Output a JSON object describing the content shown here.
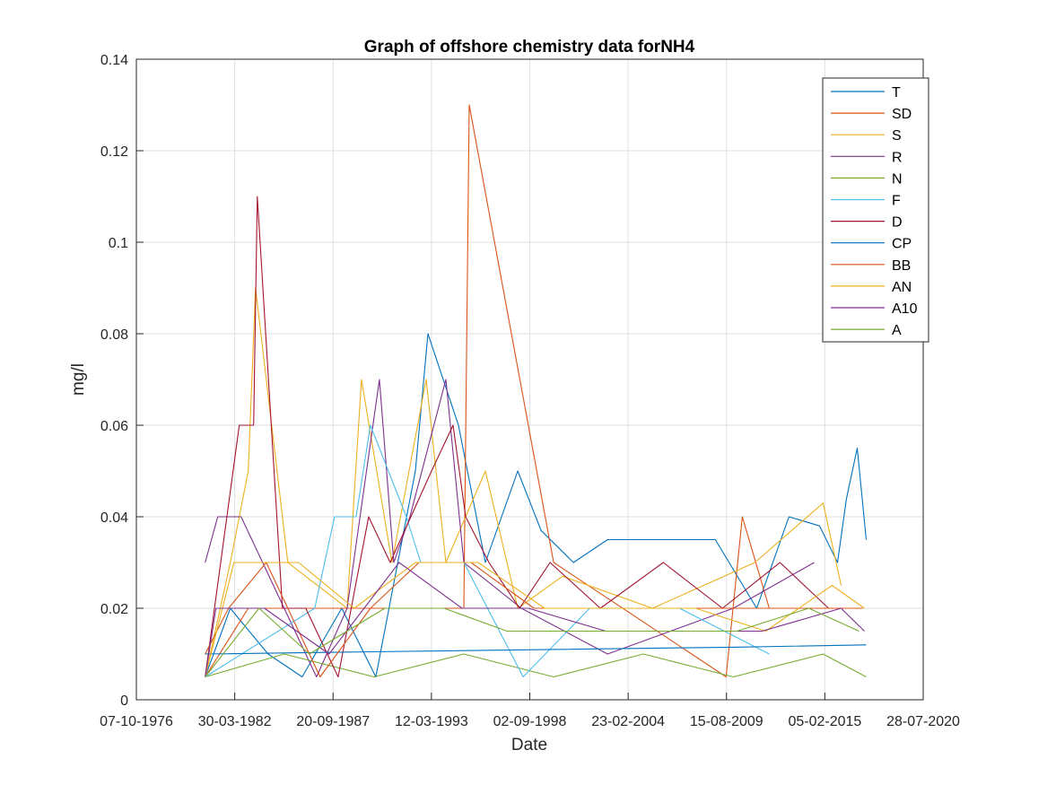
{
  "chart_data": {
    "type": "line",
    "title": "Graph of offshore chemistry data forNH4",
    "xlabel": "Date",
    "ylabel": "mg/l",
    "ylim": [
      0,
      0.14
    ],
    "xlim": [
      "07-10-1976",
      "28-07-2020"
    ],
    "x_tick_labels": [
      "07-10-1976",
      "30-03-1982",
      "20-09-1987",
      "12-03-1993",
      "02-09-1998",
      "23-02-2004",
      "15-08-2009",
      "05-02-2015",
      "28-07-2020"
    ],
    "y_tick_labels": [
      "0",
      "0.02",
      "0.04",
      "0.06",
      "0.08",
      "0.1",
      "0.12",
      "0.14"
    ],
    "y_ticks": [
      0,
      0.02,
      0.04,
      0.06,
      0.08,
      0.1,
      0.12,
      0.14
    ],
    "grid": true,
    "legend_position": "top-right",
    "legend": [
      "T",
      "SD",
      "S",
      "R",
      "N",
      "F",
      "D",
      "CP",
      "BB",
      "AN",
      "A10",
      "A"
    ],
    "colors": [
      "#0072BD",
      "#D95319",
      "#EDB120",
      "#7E2F8E",
      "#77AC30",
      "#4DBEEE",
      "#A2142F",
      "#0072BD",
      "#D95319",
      "#EDB120",
      "#7E2F8E",
      "#77AC30"
    ],
    "series": [
      {
        "name": "T",
        "x": [
          1980.6,
          1982.0,
          1984.1,
          1986.0,
          1988.2,
          1990.1,
          1992.3,
          1993.0,
          1994.7,
          1996.2,
          1998.0,
          1999.3,
          2001.1,
          2003.0,
          2005.2,
          2007.4,
          2009.0,
          2011.3,
          2013.1,
          2014.8,
          2015.8,
          2016.3,
          2016.9,
          2017.4
        ],
        "y": [
          0.005,
          0.02,
          0.01,
          0.005,
          0.02,
          0.005,
          0.05,
          0.08,
          0.06,
          0.03,
          0.05,
          0.037,
          0.03,
          0.035,
          0.035,
          0.035,
          0.035,
          0.02,
          0.04,
          0.038,
          0.03,
          0.044,
          0.055,
          0.035
        ]
      },
      {
        "name": "SD",
        "x": [
          1980.6,
          1983.0,
          1995.0,
          1995.3,
          2000.0,
          2005.0,
          2009.6,
          2010.5,
          2012.0
        ],
        "y": [
          0.005,
          0.02,
          0.02,
          0.13,
          0.03,
          0.017,
          0.005,
          0.04,
          0.02
        ]
      },
      {
        "name": "S",
        "x": [
          1980.6,
          1982.0,
          1983.0,
          1983.4,
          1985.2,
          1988.5,
          1989.3,
          1991.0,
          1992.9,
          1994.0,
          1995.1,
          1996.2,
          1998.0,
          2000.5,
          2005.5,
          2011.2,
          2015.0,
          2016.0
        ],
        "y": [
          0.005,
          0.03,
          0.05,
          0.09,
          0.03,
          0.02,
          0.07,
          0.03,
          0.07,
          0.03,
          0.04,
          0.05,
          0.02,
          0.027,
          0.02,
          0.03,
          0.043,
          0.025
        ]
      },
      {
        "name": "R",
        "x": [
          1980.6,
          1981.3,
          1982.6,
          1986.8,
          1988.5,
          1990.3,
          1991.1,
          1992.0,
          1994.0,
          1995.0,
          1998.2,
          2003.0,
          2010.0,
          2014.5
        ],
        "y": [
          0.03,
          0.04,
          0.04,
          0.005,
          0.02,
          0.07,
          0.03,
          0.04,
          0.07,
          0.03,
          0.02,
          0.01,
          0.02,
          0.03
        ]
      },
      {
        "name": "N",
        "x": [
          1980.6,
          1985.0,
          1990.0,
          1995.0,
          2000.0,
          2005.0,
          2010.0,
          2015.0,
          2017.4
        ],
        "y": [
          0.005,
          0.01,
          0.005,
          0.01,
          0.005,
          0.01,
          0.005,
          0.01,
          0.005
        ]
      },
      {
        "name": "F",
        "x": [
          1980.6,
          1986.7,
          1987.8,
          1989.0,
          1989.8,
          1991.8,
          1992.6,
          1995.0,
          1998.3,
          2002.0,
          2007.0,
          2012.0
        ],
        "y": [
          0.005,
          0.02,
          0.04,
          0.04,
          0.06,
          0.04,
          0.03,
          0.03,
          0.005,
          0.02,
          0.02,
          0.01
        ]
      },
      {
        "name": "D",
        "x": [
          1980.6,
          1982.5,
          1983.3,
          1983.5,
          1984.9,
          1986.2,
          1988.0,
          1989.7,
          1990.9,
          1993.2,
          1994.4,
          1995.1,
          1996.4,
          1998.1,
          1999.8,
          2002.6,
          2006.1,
          2009.4,
          2012.6,
          2015.3
        ],
        "y": [
          0.005,
          0.06,
          0.06,
          0.11,
          0.02,
          0.02,
          0.005,
          0.04,
          0.03,
          0.05,
          0.06,
          0.04,
          0.03,
          0.02,
          0.03,
          0.02,
          0.03,
          0.02,
          0.03,
          0.02
        ]
      },
      {
        "name": "CP",
        "x": [
          1980.6,
          1990.0,
          2000.0,
          2010.0,
          2017.4
        ],
        "y": [
          0.01,
          0.0105,
          0.011,
          0.0115,
          0.012
        ]
      },
      {
        "name": "BB",
        "x": [
          1980.6,
          1981.9,
          1984.0,
          1987.0,
          1989.8,
          1992.5,
          1995.4,
          1998.9,
          2002.5,
          2006.0,
          2009.8,
          2014.0,
          2017.2
        ],
        "y": [
          0.01,
          0.02,
          0.03,
          0.005,
          0.02,
          0.03,
          0.03,
          0.02,
          0.02,
          0.02,
          0.02,
          0.02,
          0.02
        ]
      },
      {
        "name": "AN",
        "x": [
          1980.6,
          1982.2,
          1985.8,
          1988.9,
          1992.3,
          1995.8,
          1999.5,
          2003.7,
          2007.9,
          2011.8,
          2015.5,
          2017.3
        ],
        "y": [
          0.005,
          0.03,
          0.03,
          0.02,
          0.03,
          0.03,
          0.02,
          0.02,
          0.02,
          0.015,
          0.025,
          0.02
        ]
      },
      {
        "name": "A10",
        "x": [
          1980.6,
          1981.2,
          1983.9,
          1987.5,
          1991.4,
          1994.9,
          1998.6,
          2002.9,
          2007.3,
          2011.6,
          2016.0,
          2017.3
        ],
        "y": [
          0.005,
          0.02,
          0.02,
          0.01,
          0.03,
          0.02,
          0.02,
          0.015,
          0.015,
          0.015,
          0.02,
          0.015
        ]
      },
      {
        "name": "A",
        "x": [
          1980.6,
          1983.6,
          1986.4,
          1990.6,
          1993.9,
          1997.4,
          2001.7,
          2005.9,
          2010.2,
          2014.2,
          2017.0
        ],
        "y": [
          0.005,
          0.02,
          0.01,
          0.02,
          0.02,
          0.015,
          0.015,
          0.015,
          0.015,
          0.02,
          0.015
        ]
      }
    ]
  }
}
